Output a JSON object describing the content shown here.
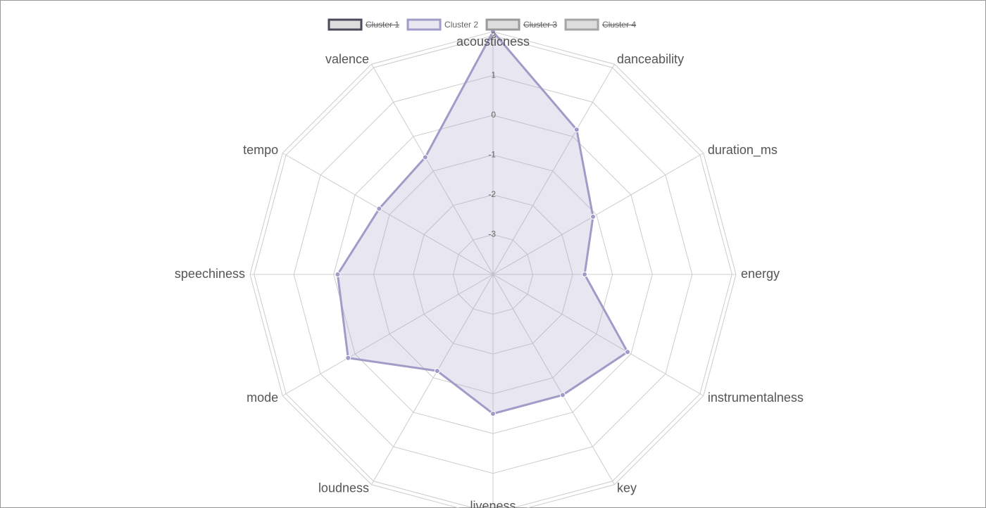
{
  "chart_data": {
    "type": "radar",
    "categories": [
      "acousticness",
      "danceability",
      "duration_ms",
      "energy",
      "instrumentalness",
      "key",
      "liveness",
      "loudness",
      "mode",
      "speechiness",
      "tempo",
      "valence"
    ],
    "ylim": [
      -4,
      2.1
    ],
    "yticks": [
      -3,
      -2,
      -1,
      0,
      1,
      2
    ],
    "grid": true,
    "legend": "top",
    "series": [
      {
        "name": "Cluster 1",
        "color": "#4a4a5a",
        "hidden": true,
        "values": [
          null,
          null,
          null,
          null,
          null,
          null,
          null,
          null,
          null,
          null,
          null,
          null
        ]
      },
      {
        "name": "Cluster 2",
        "color": "#a09cc8",
        "hidden": false,
        "values": [
          2.1,
          0.2,
          -1.1,
          -1.7,
          -0.1,
          -0.5,
          -0.5,
          -1.2,
          0.2,
          -0.1,
          -0.7,
          -0.6
        ]
      },
      {
        "name": "Cluster 3",
        "color": "#9a9a9a",
        "hidden": true,
        "values": [
          null,
          null,
          null,
          null,
          null,
          null,
          null,
          null,
          null,
          null,
          null,
          null
        ]
      },
      {
        "name": "Cluster 4",
        "color": "#a5a5a5",
        "hidden": true,
        "values": [
          null,
          null,
          null,
          null,
          null,
          null,
          null,
          null,
          null,
          null,
          null,
          null
        ]
      }
    ]
  }
}
